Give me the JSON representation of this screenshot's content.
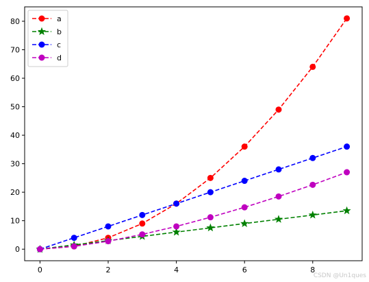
{
  "chart_data": {
    "type": "line",
    "title": "",
    "xlabel": "",
    "ylabel": "",
    "x": [
      0,
      1,
      2,
      3,
      4,
      5,
      6,
      7,
      8,
      9
    ],
    "xlim": [
      -0.45,
      9.45
    ],
    "ylim": [
      -4.05,
      85.05
    ],
    "xticks": [
      0,
      2,
      4,
      6,
      8
    ],
    "yticks": [
      0,
      10,
      20,
      30,
      40,
      50,
      60,
      70,
      80
    ],
    "grid": false,
    "legend_position": "upper left",
    "series": [
      {
        "name": "a",
        "color": "#ff0000",
        "marker": "circle",
        "linestyle": "dashed",
        "values": [
          0,
          1,
          4,
          9,
          16,
          25,
          36,
          49,
          64,
          81
        ]
      },
      {
        "name": "b",
        "color": "#008000",
        "marker": "star",
        "linestyle": "dashed",
        "values": [
          0,
          1.5,
          3,
          4.5,
          6,
          7.5,
          9,
          10.5,
          12,
          13.5
        ]
      },
      {
        "name": "c",
        "color": "#0000ff",
        "marker": "circle",
        "linestyle": "dashed",
        "values": [
          0,
          4,
          8,
          12,
          16,
          20,
          24,
          28,
          32,
          36
        ]
      },
      {
        "name": "d",
        "color": "#bf00bf",
        "marker": "circle",
        "linestyle": "dashed",
        "values": [
          0,
          1,
          2.8,
          5.2,
          8,
          11.2,
          14.7,
          18.5,
          22.6,
          27
        ]
      }
    ]
  },
  "watermark": "CSDN @Un1ques"
}
